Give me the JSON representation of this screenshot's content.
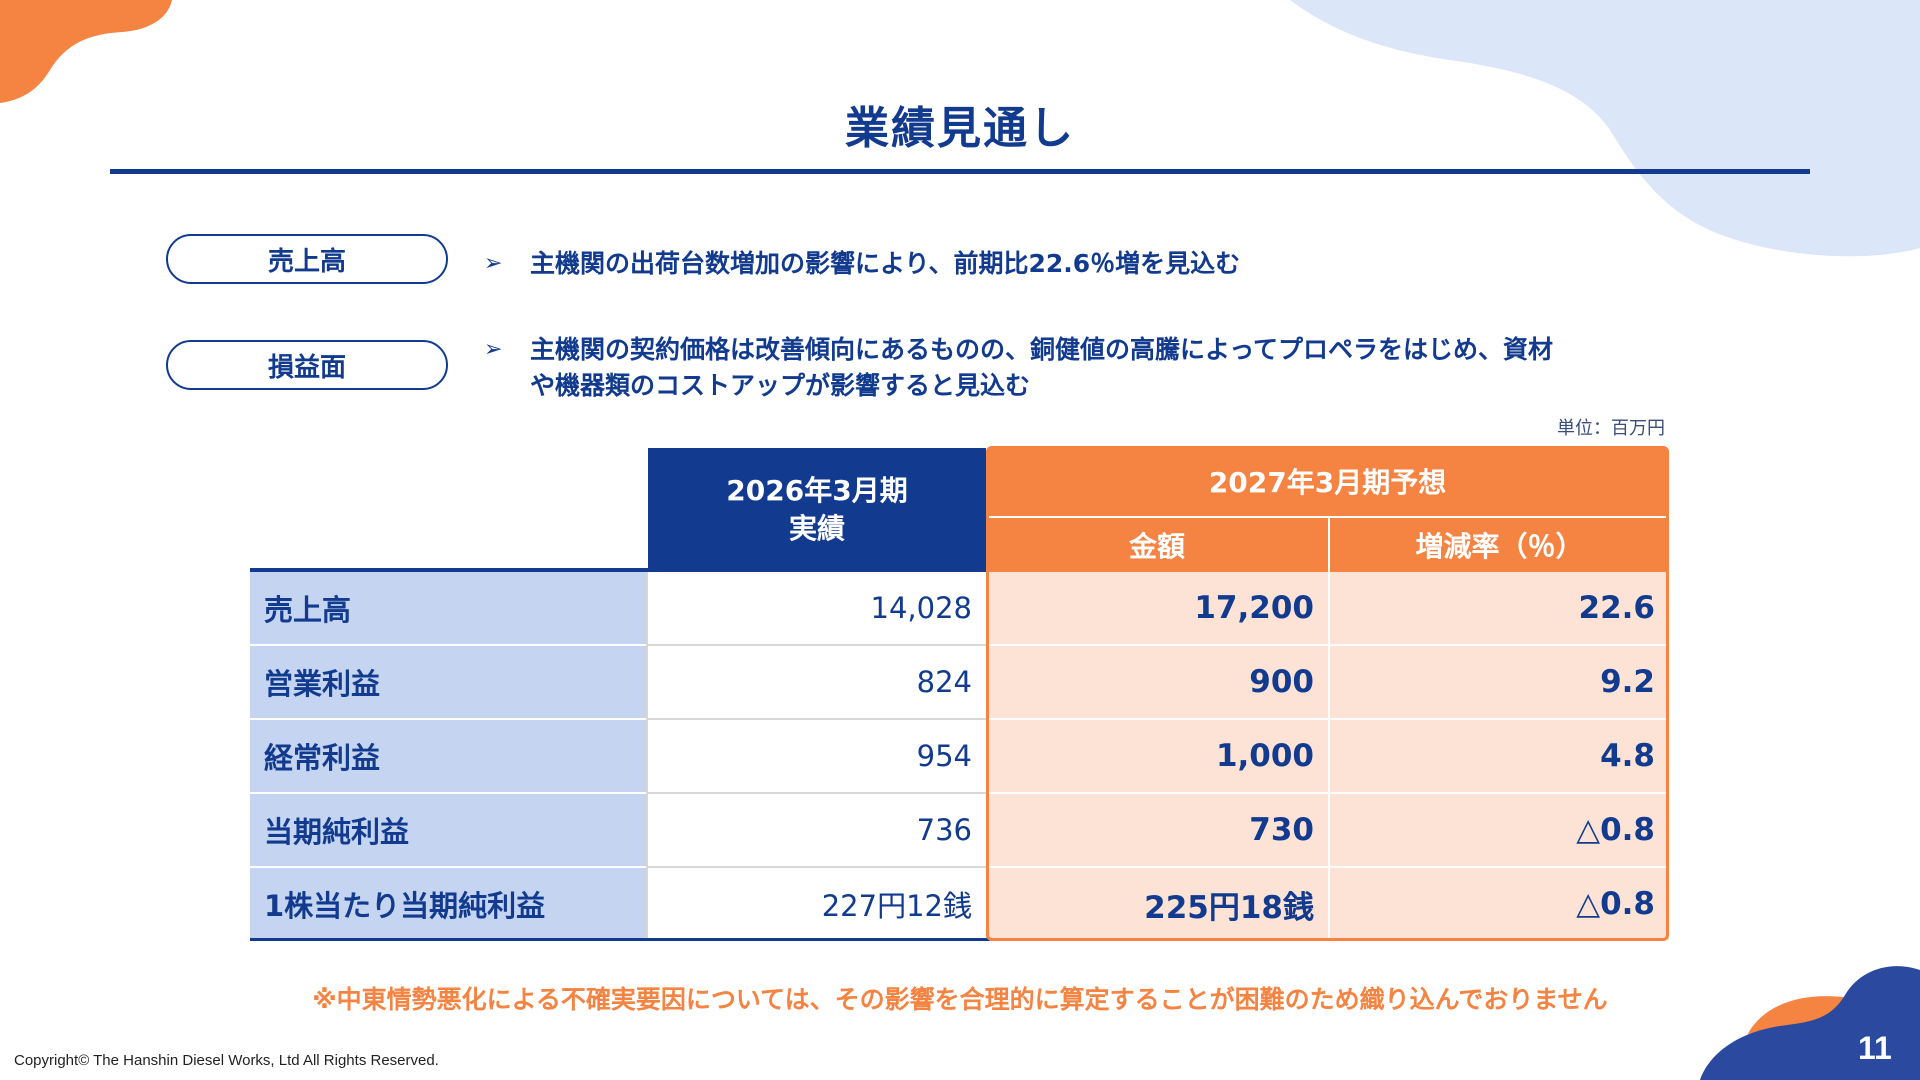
{
  "title": "業績見通し",
  "sections": [
    {
      "label": "売上高",
      "marker": "➢",
      "text": "主機関の出荷台数増加の影響により、前期比22.6％増を見込む"
    },
    {
      "label": "損益面",
      "marker": "➢",
      "text_line1": "主機関の契約価格は改善傾向にあるものの、銅健値の高騰によってプロペラをはじめ、資材",
      "text_line2": "や機器類のコストアップが影響すると見込む"
    }
  ],
  "unit": "単位：百万円",
  "table": {
    "actual_header_line1": "2026年3月期",
    "actual_header_line2": "実績",
    "forecast_header": "2027年3月期予想",
    "amount_header": "金額",
    "rate_header": "増減率（％）",
    "rows": [
      {
        "label": "売上高",
        "actual": "14,028",
        "forecast": "17,200",
        "rate": "22.6"
      },
      {
        "label": "営業利益",
        "actual": "824",
        "forecast": "900",
        "rate": "9.2"
      },
      {
        "label": "経常利益",
        "actual": "954",
        "forecast": "1,000",
        "rate": "4.8"
      },
      {
        "label": "当期純利益",
        "actual": "736",
        "forecast": "730",
        "rate": "△0.8"
      },
      {
        "label": "1株当たり当期純利益",
        "actual": "227円12銭",
        "forecast": "225円18銭",
        "rate": "△0.8"
      }
    ]
  },
  "note": "※中東情勢悪化による不確実要因については、その影響を合理的に算定することが困難のため織り込んでおりません",
  "copyright": "Copyright© The Hanshin Diesel Works, Ltd All Rights Reserved.",
  "page_number": "11",
  "colors": {
    "navy": "#123b8f",
    "orange": "#f58342",
    "light_blue": "#c5d4f0",
    "peach": "#fde3d6",
    "pale_blue_blob": "#dbe6f8"
  }
}
